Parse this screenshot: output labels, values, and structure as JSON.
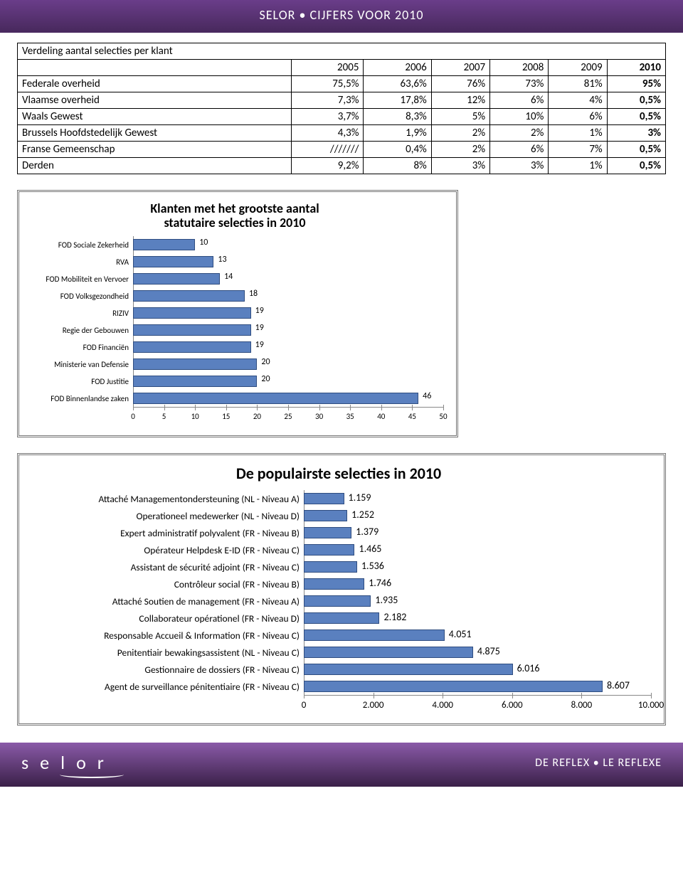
{
  "header": {
    "title": "SELOR • CIJFERS VOOR 2010"
  },
  "table": {
    "title": "Verdeling aantal selecties per klant",
    "year_headers": [
      "2005",
      "2006",
      "2007",
      "2008",
      "2009",
      "2010"
    ],
    "rows": [
      {
        "label": "Federale overheid",
        "cells": [
          "75,5%",
          "63,6%",
          "76%",
          "73%",
          "81%",
          "95%"
        ]
      },
      {
        "label": "Vlaamse overheid",
        "cells": [
          "7,3%",
          "17,8%",
          "12%",
          "6%",
          "4%",
          "0,5%"
        ]
      },
      {
        "label": "Waals Gewest",
        "cells": [
          "3,7%",
          "8,3%",
          "5%",
          "10%",
          "6%",
          "0,5%"
        ]
      },
      {
        "label": "Brussels Hoofdstedelijk Gewest",
        "cells": [
          "4,3%",
          "1,9%",
          "2%",
          "2%",
          "1%",
          "3%"
        ]
      },
      {
        "label": "Franse Gemeenschap",
        "cells": [
          "///////",
          "0,4%",
          "2%",
          "6%",
          "7%",
          "0,5%"
        ]
      },
      {
        "label": "Derden",
        "cells": [
          "9,2%",
          "8%",
          "3%",
          "3%",
          "1%",
          "0,5%"
        ]
      }
    ],
    "bold_col_index": 5
  },
  "chart1": {
    "type": "hbar",
    "title_line1": "Klanten met het grootste aantal",
    "title_line2": "statutaire selecties in 2010",
    "cat_label_width": 150,
    "xmax": 50,
    "xticks": [
      0,
      5,
      10,
      15,
      20,
      25,
      30,
      35,
      40,
      45,
      50
    ],
    "bar_color": "#5a80bf",
    "bar_border": "#2f4d80",
    "label_fontsize": 11,
    "value_fontsize": 12,
    "categories": [
      "FOD Sociale Zekerheid",
      "RVA",
      "FOD Mobiliteit en Vervoer",
      "FOD Volksgezondheid",
      "RIZIV",
      "Regie der Gebouwen",
      "FOD Financiën",
      "Ministerie van Defensie",
      "FOD Justitie",
      "FOD Binnenlandse zaken"
    ],
    "values": [
      10,
      13,
      14,
      18,
      19,
      19,
      19,
      20,
      20,
      46
    ],
    "value_labels": [
      "10",
      "13",
      "14",
      "18",
      "19",
      "19",
      "19",
      "20",
      "20",
      "46"
    ]
  },
  "chart2": {
    "type": "hbar",
    "title": "De populairste selecties in 2010",
    "cat_label_width": 390,
    "xmax": 10000,
    "xticks": [
      0,
      2000,
      4000,
      6000,
      8000,
      10000
    ],
    "xtick_labels": [
      "0",
      "2.000",
      "4.000",
      "6.000",
      "8.000",
      "10.000"
    ],
    "bar_color": "#5a80bf",
    "bar_border": "#2f4d80",
    "label_fontsize": 13.5,
    "value_fontsize": 14,
    "categories": [
      "Attaché Managementondersteuning (NL - Niveau A)",
      "Operationeel medewerker (NL - Niveau D)",
      "Expert administratif polyvalent (FR - Niveau B)",
      "Opérateur Helpdesk E-ID (FR - Niveau C)",
      "Assistant de sécurité adjoint (FR - Niveau C)",
      "Contrôleur social (FR - Niveau B)",
      "Attaché Soutien de management (FR - Niveau A)",
      "Collaborateur opérationel (FR - Niveau D)",
      "Responsable Accueil & Information (FR - Niveau C)",
      "Penitentiair bewakingsassistent (NL - Niveau C)",
      "Gestionnaire de dossiers (FR - Niveau C)",
      "Agent de surveillance pénitentiaire (FR - Niveau C)"
    ],
    "values": [
      1159,
      1252,
      1379,
      1465,
      1536,
      1746,
      1935,
      2182,
      4051,
      4875,
      6016,
      8607
    ],
    "value_labels": [
      "1.159",
      "1.252",
      "1.379",
      "1.465",
      "1.536",
      "1.746",
      "1.935",
      "2.182",
      "4.051",
      "4.875",
      "6.016",
      "8.607"
    ]
  },
  "footer": {
    "logo_text": "selor",
    "right_text": "DE REFLEX • LE REFLEXE"
  },
  "colors": {
    "header_bg_top": "#6a3d8a",
    "header_bg_bottom": "#4a2a60",
    "footer_bg_top": "#8a5aa8",
    "footer_bg_bottom": "#3a2048",
    "grid": "#e6e6e6",
    "axis": "#888888"
  }
}
